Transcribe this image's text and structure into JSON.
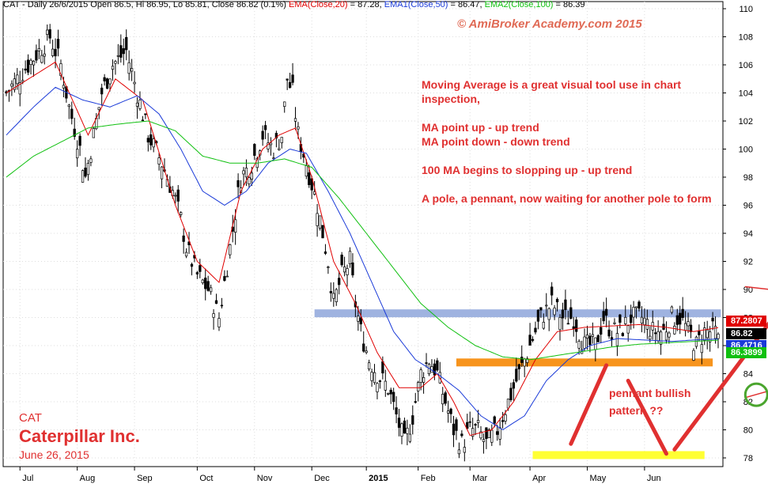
{
  "header": {
    "ticker": "CAT",
    "summary": " - Daily 26/6/2015 Open 86.5, Hi 86.95, Lo 85.81, Close 86.82 (0.1%) ",
    "ema20_label": "EMA(Close,20)",
    "ema20_value": " = 87.28, ",
    "ema50_label": "EMA1(Close,50)",
    "ema50_value": " = 86.47, ",
    "ema100_label": "EMA2(Close,100)",
    "ema100_value": " = 86.39"
  },
  "copyright": "© AmiBroker Academy.com 2015",
  "notes": [
    "Moving Average is a great visual tool use in chart inspection,",
    "MA point up - up trend",
    "MA point down - down trend",
    "100 MA begins to slopping up - up trend",
    "A pole, a pennant, now waiting for another pole to form"
  ],
  "pennant_note": [
    "pennant bullish",
    "pattern ??"
  ],
  "stock": {
    "ticker": "CAT",
    "name": "Caterpillar Inc.",
    "date": "June 26, 2015"
  },
  "price_tags": [
    {
      "label": "87.2807",
      "value": 87.28,
      "color": "#e00000"
    },
    {
      "label": "86.82",
      "value": 86.82,
      "color": "#000000"
    },
    {
      "label": "86.4716",
      "value": 86.47,
      "color": "#1a3ad8"
    },
    {
      "label": "86.3899",
      "value": 86.39,
      "color": "#10c010"
    }
  ],
  "colors": {
    "ema20": "#e00000",
    "ema50": "#1a3ad8",
    "ema100": "#10c010",
    "annotation": "#e03030",
    "support_blue": "#9fb3e0",
    "support_orange": "#f7941d",
    "support_yellow": "#ffff33",
    "circle": "#4aa52e"
  },
  "chart_data": {
    "type": "candlestick",
    "title": "CAT - Daily",
    "ylim": [
      77,
      111
    ],
    "y_ticks": [
      78,
      80,
      82,
      84,
      86,
      88,
      90,
      92,
      94,
      96,
      98,
      100,
      102,
      104,
      106,
      108,
      110
    ],
    "x_ticks": [
      "Jul",
      "Aug",
      "Sep",
      "Oct",
      "Nov",
      "Dec",
      "2015",
      "Feb",
      "Mar",
      "Apr",
      "May",
      "Jun"
    ],
    "x_tick_pos": [
      5,
      26,
      47,
      70,
      91,
      112,
      132,
      151,
      170,
      192,
      213,
      234
    ],
    "n_days": 262,
    "close_anchors": [
      [
        0,
        104
      ],
      [
        8,
        106
      ],
      [
        16,
        108
      ],
      [
        20,
        106
      ],
      [
        23,
        103
      ],
      [
        27,
        100
      ],
      [
        29,
        98
      ],
      [
        31,
        100
      ],
      [
        35,
        104
      ],
      [
        39,
        106
      ],
      [
        44,
        107
      ],
      [
        48,
        104
      ],
      [
        52,
        101
      ],
      [
        57,
        99
      ],
      [
        61,
        97
      ],
      [
        64,
        95
      ],
      [
        66,
        93
      ],
      [
        70,
        91
      ],
      [
        74,
        90
      ],
      [
        78,
        88
      ],
      [
        82,
        93
      ],
      [
        86,
        98
      ],
      [
        90,
        99
      ],
      [
        94,
        101
      ],
      [
        98,
        100
      ],
      [
        101,
        101
      ],
      [
        103,
        105
      ],
      [
        105,
        104
      ],
      [
        107,
        101
      ],
      [
        110,
        99
      ],
      [
        114,
        96
      ],
      [
        118,
        92
      ],
      [
        120,
        89
      ],
      [
        123,
        91
      ],
      [
        126,
        92
      ],
      [
        128,
        89
      ],
      [
        130,
        87
      ],
      [
        133,
        85
      ],
      [
        136,
        84
      ],
      [
        140,
        83
      ],
      [
        143,
        81
      ],
      [
        146,
        79
      ],
      [
        149,
        81
      ],
      [
        152,
        84
      ],
      [
        155,
        85
      ],
      [
        158,
        84
      ],
      [
        161,
        82
      ],
      [
        164,
        80
      ],
      [
        167,
        79
      ],
      [
        170,
        80
      ],
      [
        173,
        80
      ],
      [
        176,
        79
      ],
      [
        180,
        80
      ],
      [
        184,
        82
      ],
      [
        188,
        84
      ],
      [
        192,
        86
      ],
      [
        196,
        88
      ],
      [
        200,
        89
      ],
      [
        204,
        88
      ],
      [
        208,
        88
      ],
      [
        212,
        86
      ],
      [
        216,
        86
      ],
      [
        219,
        88
      ],
      [
        222,
        87
      ],
      [
        225,
        87
      ],
      [
        229,
        88
      ],
      [
        233,
        88
      ],
      [
        237,
        87
      ],
      [
        241,
        87
      ],
      [
        244,
        88
      ],
      [
        247,
        88
      ],
      [
        250,
        87
      ],
      [
        253,
        86
      ],
      [
        256,
        87
      ],
      [
        259,
        87
      ],
      [
        261,
        86.82
      ]
    ],
    "ema_anchors": {
      "EMA(Close,20)": [
        [
          0,
          104
        ],
        [
          18,
          106.2
        ],
        [
          30,
          101
        ],
        [
          40,
          105
        ],
        [
          50,
          103.5
        ],
        [
          62,
          96
        ],
        [
          70,
          92
        ],
        [
          78,
          90.5
        ],
        [
          86,
          97
        ],
        [
          94,
          100
        ],
        [
          100,
          101
        ],
        [
          106,
          101.5
        ],
        [
          112,
          98
        ],
        [
          120,
          92
        ],
        [
          128,
          89
        ],
        [
          136,
          85.5
        ],
        [
          144,
          83
        ],
        [
          152,
          83
        ],
        [
          158,
          84
        ],
        [
          164,
          82
        ],
        [
          170,
          79.6
        ],
        [
          178,
          80
        ],
        [
          186,
          82
        ],
        [
          194,
          85
        ],
        [
          202,
          87
        ],
        [
          212,
          87.3
        ],
        [
          222,
          87.4
        ],
        [
          232,
          87.5
        ],
        [
          242,
          87.3
        ],
        [
          252,
          87
        ],
        [
          261,
          87.28
        ]
      ],
      "EMA1(Close,50)": [
        [
          0,
          101
        ],
        [
          10,
          103
        ],
        [
          18,
          104.4
        ],
        [
          28,
          103.5
        ],
        [
          38,
          103
        ],
        [
          48,
          103.8
        ],
        [
          56,
          102.5
        ],
        [
          64,
          100
        ],
        [
          72,
          97
        ],
        [
          80,
          96
        ],
        [
          88,
          97
        ],
        [
          96,
          99
        ],
        [
          104,
          100
        ],
        [
          110,
          99.7
        ],
        [
          118,
          97
        ],
        [
          126,
          94
        ],
        [
          134,
          90.5
        ],
        [
          142,
          87
        ],
        [
          150,
          85
        ],
        [
          158,
          84
        ],
        [
          166,
          82.8
        ],
        [
          174,
          81
        ],
        [
          182,
          80
        ],
        [
          190,
          81
        ],
        [
          198,
          83.5
        ],
        [
          206,
          85
        ],
        [
          214,
          86
        ],
        [
          224,
          86.5
        ],
        [
          234,
          86.4
        ],
        [
          244,
          86.3
        ],
        [
          252,
          86.4
        ],
        [
          261,
          86.47
        ]
      ],
      "EMA2(Close,100)": [
        [
          0,
          98
        ],
        [
          10,
          99.5
        ],
        [
          20,
          100.5
        ],
        [
          30,
          101.5
        ],
        [
          42,
          101.8
        ],
        [
          52,
          102
        ],
        [
          62,
          101.3
        ],
        [
          72,
          99.5
        ],
        [
          82,
          99
        ],
        [
          92,
          99
        ],
        [
          102,
          99.3
        ],
        [
          112,
          98.7
        ],
        [
          122,
          96.5
        ],
        [
          132,
          94
        ],
        [
          142,
          91.5
        ],
        [
          152,
          89
        ],
        [
          162,
          87.3
        ],
        [
          172,
          86
        ],
        [
          182,
          85.2
        ],
        [
          192,
          85
        ],
        [
          202,
          85.3
        ],
        [
          212,
          85.6
        ],
        [
          222,
          85.9
        ],
        [
          232,
          86.1
        ],
        [
          242,
          86.2
        ],
        [
          252,
          86.3
        ],
        [
          261,
          86.39
        ]
      ]
    },
    "series": [
      {
        "name": "EMA(Close,20)",
        "last": 87.28
      },
      {
        "name": "EMA1(Close,50)",
        "last": 86.47
      },
      {
        "name": "EMA2(Close,100)",
        "last": 86.39
      }
    ],
    "last_bar": {
      "date": "26/6/2015",
      "open": 86.5,
      "high": 86.95,
      "low": 85.81,
      "close": 86.82,
      "change_pct": 0.1
    },
    "support_bands": [
      {
        "y": 88.3,
        "x0": 113,
        "x1": 262,
        "color": "#9fb3e0"
      },
      {
        "y": 84.8,
        "x0": 165,
        "x1": 259,
        "color": "#f7941d"
      },
      {
        "y": 78.2,
        "x0": 193,
        "x1": 256,
        "color": "#ffff33"
      }
    ],
    "trend_lines": [
      {
        "from": [
          207,
          79.0
        ],
        "to": [
          220,
          84.6
        ],
        "color": "#e03030",
        "width": 5
      },
      {
        "from": [
          228,
          83.5
        ],
        "to": [
          242,
          78.3
        ],
        "color": "#e03030",
        "width": 5
      },
      {
        "from": [
          245,
          78.6
        ],
        "to": [
          287,
          89.5
        ],
        "color": "#e03030",
        "width": 5
      },
      {
        "from": [
          271,
          90.2
        ],
        "to": [
          346,
          88.5
        ],
        "color": "#e03030",
        "width": 1.5
      },
      {
        "from": [
          271,
          82.3
        ],
        "to": [
          342,
          86.2
        ],
        "color": "#e03030",
        "width": 1.5
      },
      {
        "from": [
          334,
          86.0
        ],
        "to": [
          355,
          93.0
        ],
        "color": "#e03030",
        "width": 3,
        "arrow": true
      }
    ],
    "circles": [
      {
        "x": 275,
        "y": 82.5
      },
      {
        "x": 330,
        "y": 86.2
      }
    ]
  }
}
